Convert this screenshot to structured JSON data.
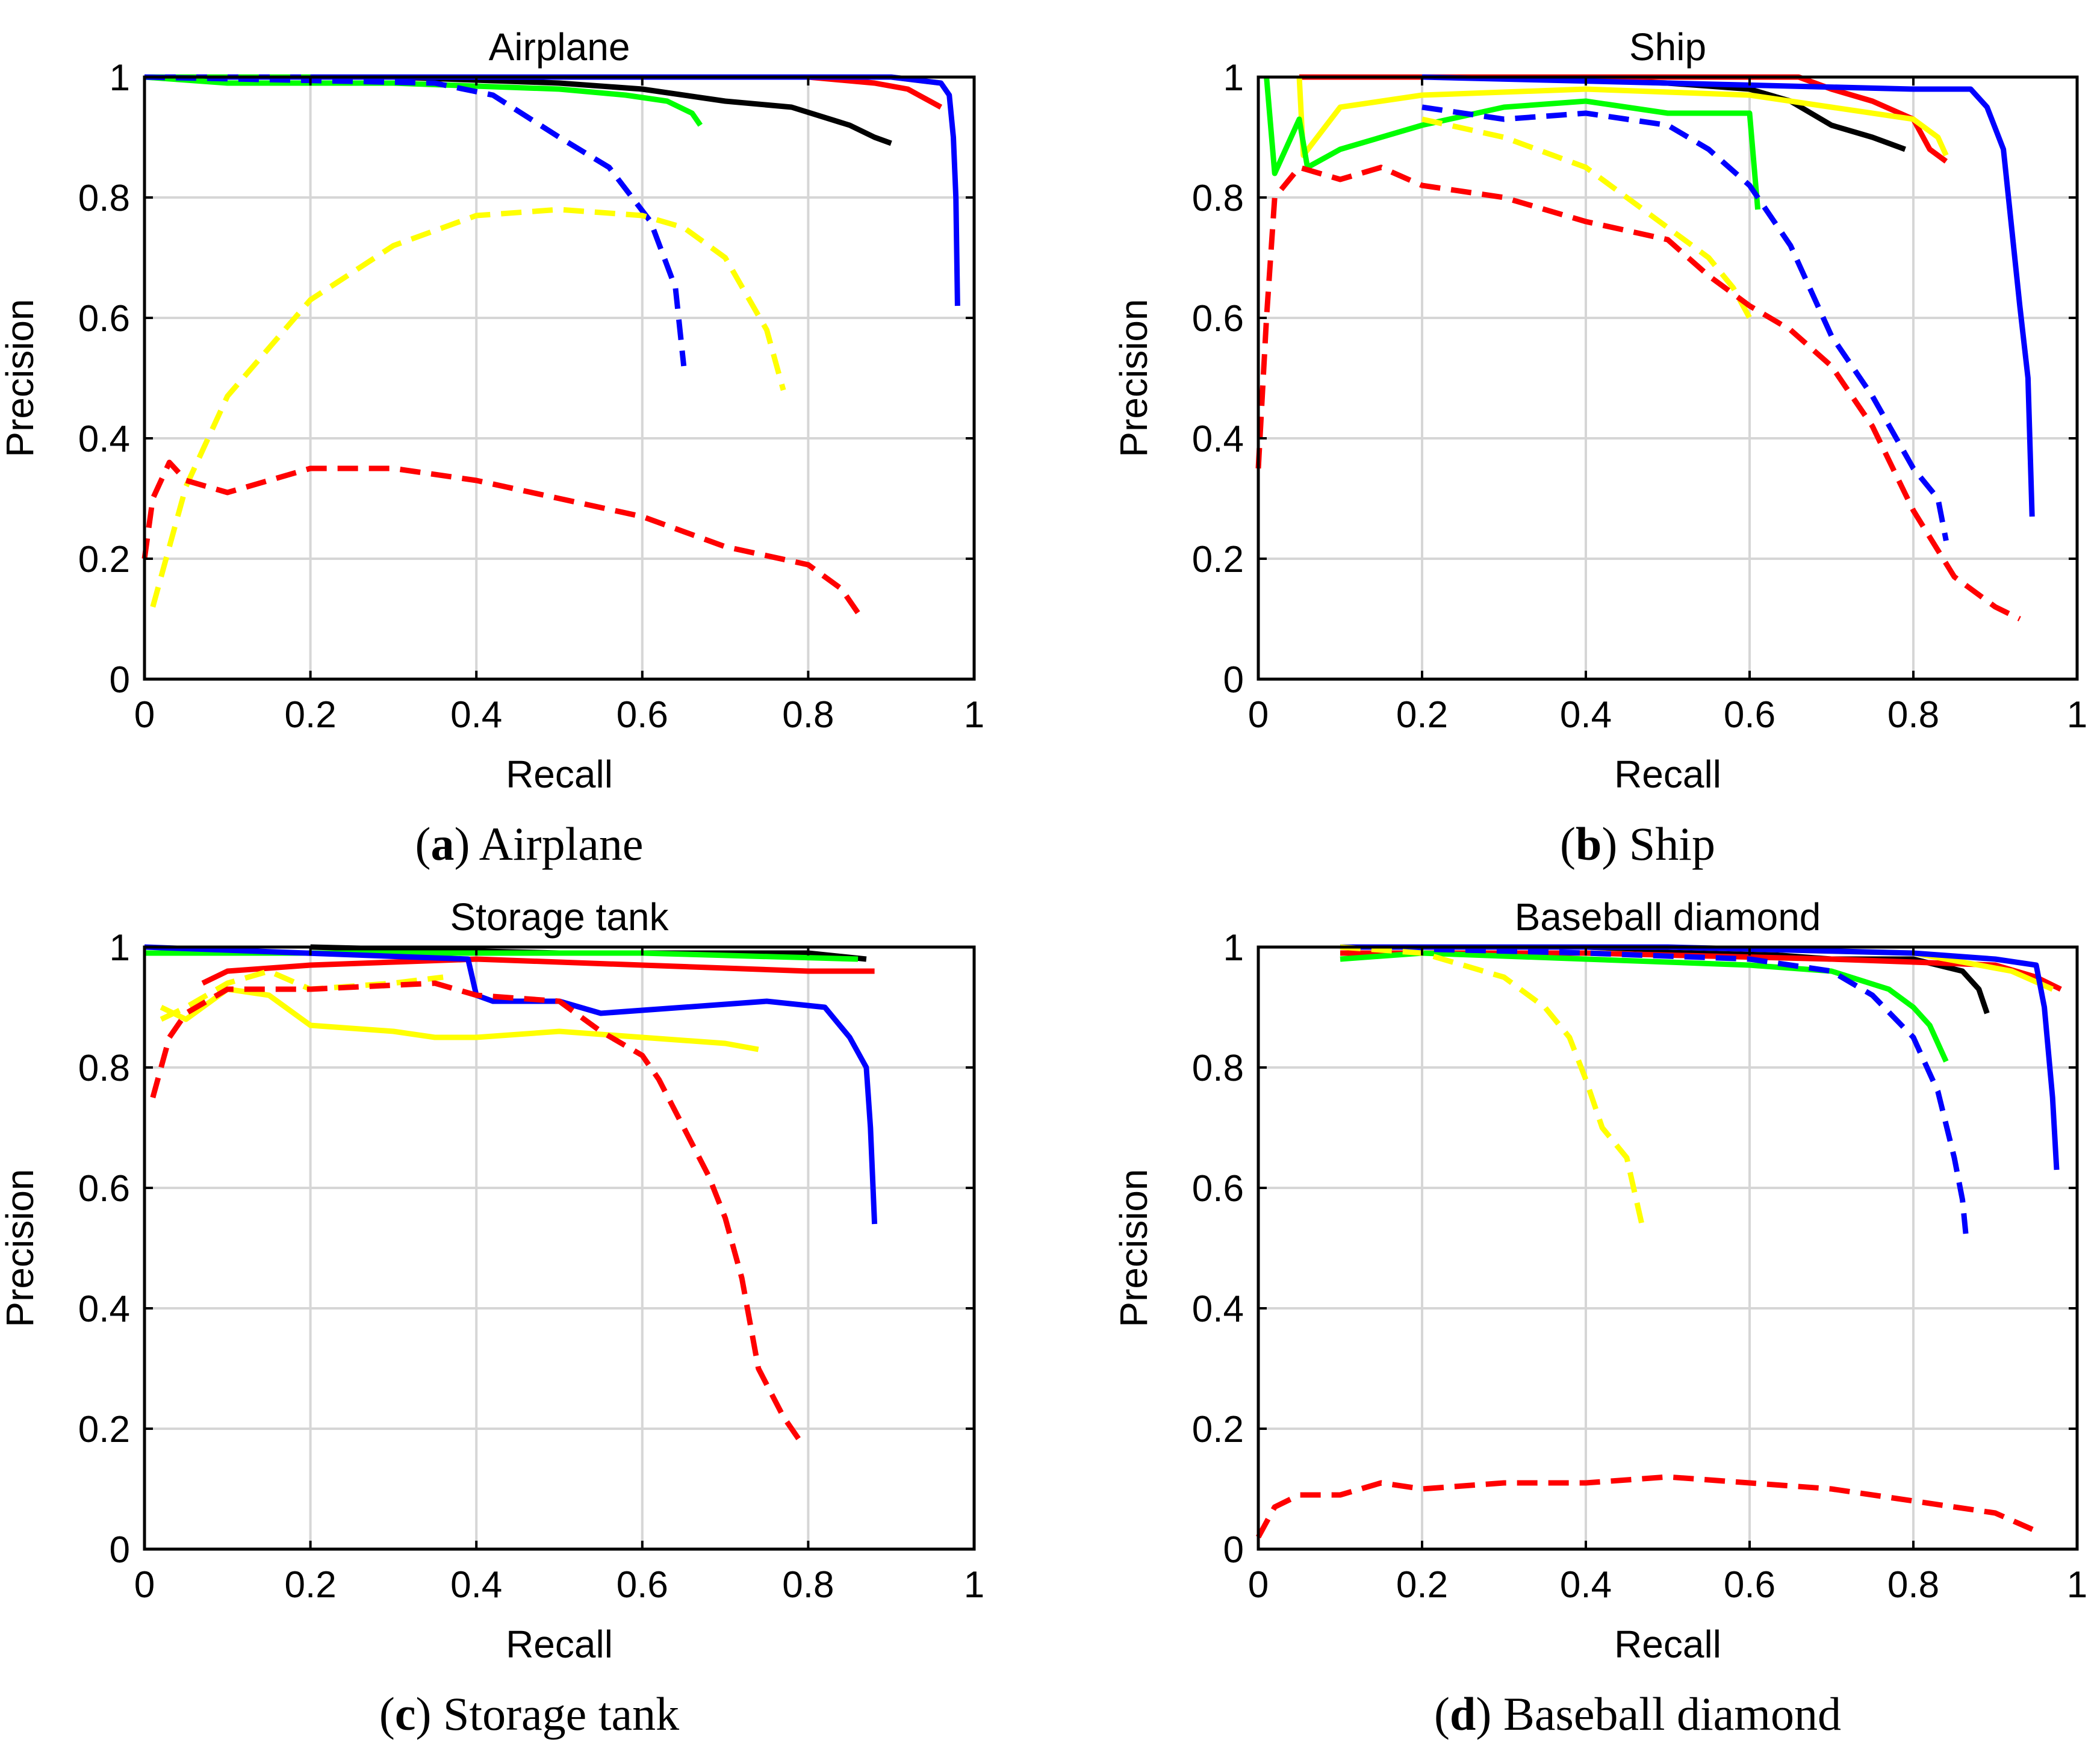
{
  "chart_data": [
    {
      "panel_letter": "a",
      "caption": "Airplane",
      "type": "line",
      "title": "Airplane",
      "xlabel": "Recall",
      "ylabel": "Precision",
      "xlim": [
        0,
        1
      ],
      "ylim": [
        0,
        1
      ],
      "xticks": [
        "0",
        "0.2",
        "0.4",
        "0.6",
        "0.8",
        "1"
      ],
      "yticks": [
        "0",
        "0.2",
        "0.4",
        "0.6",
        "0.8",
        "1"
      ],
      "grid": true,
      "series": [
        {
          "color": "#000000",
          "style": "solid",
          "x": [
            0,
            0.3,
            0.5,
            0.6,
            0.7,
            0.78,
            0.85,
            0.88,
            0.9
          ],
          "y": [
            1,
            1,
            0.99,
            0.98,
            0.96,
            0.95,
            0.92,
            0.9,
            0.89
          ]
        },
        {
          "color": "#ff0000",
          "style": "solid",
          "x": [
            0,
            0.3,
            0.6,
            0.8,
            0.88,
            0.92,
            0.96
          ],
          "y": [
            1,
            1,
            1,
            1,
            0.99,
            0.98,
            0.95
          ]
        },
        {
          "color": "#ffff00",
          "style": "solid",
          "x": [
            0,
            0.5,
            0.8,
            0.9,
            0.96
          ],
          "y": [
            1,
            1,
            1,
            1,
            0.99
          ]
        },
        {
          "color": "#0000ff",
          "style": "solid",
          "x": [
            0,
            0.5,
            0.9,
            0.96,
            0.97,
            0.975,
            0.978,
            0.98
          ],
          "y": [
            1,
            1,
            1,
            0.99,
            0.97,
            0.9,
            0.8,
            0.62
          ]
        },
        {
          "color": "#00ff00",
          "style": "solid",
          "x": [
            0,
            0.1,
            0.3,
            0.5,
            0.58,
            0.63,
            0.66,
            0.67
          ],
          "y": [
            1,
            0.99,
            0.99,
            0.98,
            0.97,
            0.96,
            0.94,
            0.92
          ]
        },
        {
          "color": "#00ff00",
          "style": "dashed",
          "x": [
            0,
            0.2
          ],
          "y": [
            1,
            1
          ]
        },
        {
          "color": "#0000ff",
          "style": "dashed",
          "x": [
            0,
            0.35,
            0.42,
            0.5,
            0.56,
            0.61,
            0.64,
            0.65
          ],
          "y": [
            1,
            0.99,
            0.97,
            0.9,
            0.85,
            0.76,
            0.65,
            0.52
          ]
        },
        {
          "color": "#ffff00",
          "style": "dashed",
          "x": [
            0.01,
            0.05,
            0.1,
            0.2,
            0.3,
            0.4,
            0.5,
            0.6,
            0.65,
            0.7,
            0.75,
            0.77
          ],
          "y": [
            0.12,
            0.32,
            0.47,
            0.63,
            0.72,
            0.77,
            0.78,
            0.77,
            0.75,
            0.7,
            0.58,
            0.48
          ]
        },
        {
          "color": "#ff0000",
          "style": "dashed",
          "x": [
            0,
            0.01,
            0.03,
            0.05,
            0.1,
            0.2,
            0.3,
            0.4,
            0.5,
            0.6,
            0.7,
            0.8,
            0.84,
            0.86
          ],
          "y": [
            0.2,
            0.3,
            0.36,
            0.33,
            0.31,
            0.35,
            0.35,
            0.33,
            0.3,
            0.27,
            0.22,
            0.19,
            0.15,
            0.11
          ]
        }
      ]
    },
    {
      "panel_letter": "b",
      "caption": "Ship",
      "type": "line",
      "title": "Ship",
      "xlabel": "Recall",
      "ylabel": "Precision",
      "xlim": [
        0,
        1
      ],
      "ylim": [
        0,
        1
      ],
      "xticks": [
        "0",
        "0.2",
        "0.4",
        "0.6",
        "0.8",
        "1"
      ],
      "yticks": [
        "0",
        "0.2",
        "0.4",
        "0.6",
        "0.8",
        "1"
      ],
      "grid": true,
      "series": [
        {
          "color": "#000000",
          "style": "solid",
          "x": [
            0.05,
            0.3,
            0.5,
            0.6,
            0.65,
            0.7,
            0.75,
            0.79
          ],
          "y": [
            1,
            1,
            0.99,
            0.98,
            0.96,
            0.92,
            0.9,
            0.88
          ]
        },
        {
          "color": "#ff0000",
          "style": "solid",
          "x": [
            0.05,
            0.4,
            0.66,
            0.7,
            0.75,
            0.8,
            0.82,
            0.84
          ],
          "y": [
            1,
            1,
            1,
            0.98,
            0.96,
            0.93,
            0.88,
            0.86
          ]
        },
        {
          "color": "#ffff00",
          "style": "solid",
          "x": [
            0.05,
            0.055,
            0.1,
            0.2,
            0.4,
            0.6,
            0.7,
            0.8,
            0.83,
            0.84
          ],
          "y": [
            1,
            0.87,
            0.95,
            0.97,
            0.98,
            0.97,
            0.95,
            0.93,
            0.9,
            0.87
          ]
        },
        {
          "color": "#0000ff",
          "style": "solid",
          "x": [
            0.2,
            0.5,
            0.8,
            0.87,
            0.89,
            0.91,
            0.92,
            0.93,
            0.94,
            0.945
          ],
          "y": [
            1,
            0.99,
            0.98,
            0.98,
            0.95,
            0.88,
            0.75,
            0.62,
            0.5,
            0.27
          ]
        },
        {
          "color": "#00ff00",
          "style": "solid",
          "x": [
            0.01,
            0.02,
            0.04,
            0.05,
            0.06,
            0.1,
            0.2,
            0.3,
            0.4,
            0.5,
            0.6,
            0.61
          ],
          "y": [
            1,
            0.84,
            0.9,
            0.93,
            0.85,
            0.88,
            0.92,
            0.95,
            0.96,
            0.94,
            0.94,
            0.78
          ]
        },
        {
          "color": "#0000ff",
          "style": "dashed",
          "x": [
            0.2,
            0.3,
            0.4,
            0.5,
            0.55,
            0.6,
            0.65,
            0.7,
            0.75,
            0.8,
            0.83,
            0.84
          ],
          "y": [
            0.95,
            0.93,
            0.94,
            0.92,
            0.88,
            0.82,
            0.72,
            0.57,
            0.47,
            0.35,
            0.3,
            0.23
          ]
        },
        {
          "color": "#ffff00",
          "style": "dashed",
          "x": [
            0.2,
            0.3,
            0.4,
            0.45,
            0.5,
            0.55,
            0.58,
            0.6
          ],
          "y": [
            0.93,
            0.9,
            0.85,
            0.8,
            0.75,
            0.7,
            0.65,
            0.6
          ]
        },
        {
          "color": "#ff0000",
          "style": "dashed",
          "x": [
            0,
            0.01,
            0.02,
            0.05,
            0.1,
            0.15,
            0.2,
            0.3,
            0.4,
            0.5,
            0.55,
            0.6,
            0.65,
            0.7,
            0.75,
            0.8,
            0.85,
            0.9,
            0.93
          ],
          "y": [
            0.35,
            0.6,
            0.8,
            0.85,
            0.83,
            0.85,
            0.82,
            0.8,
            0.76,
            0.73,
            0.67,
            0.62,
            0.58,
            0.52,
            0.42,
            0.28,
            0.17,
            0.12,
            0.1
          ]
        }
      ]
    },
    {
      "panel_letter": "c",
      "caption": "Storage tank",
      "type": "line",
      "title": "Storage tank",
      "xlabel": "Recall",
      "ylabel": "Precision",
      "xlim": [
        0,
        1
      ],
      "ylim": [
        0,
        1
      ],
      "xticks": [
        "0",
        "0.2",
        "0.4",
        "0.6",
        "0.8",
        "1"
      ],
      "yticks": [
        "0",
        "0.2",
        "0.4",
        "0.6",
        "0.8",
        "1"
      ],
      "grid": true,
      "series": [
        {
          "color": "#000000",
          "style": "solid",
          "x": [
            0.2,
            0.5,
            0.8,
            0.87
          ],
          "y": [
            1,
            0.99,
            0.99,
            0.98
          ]
        },
        {
          "color": "#00ff00",
          "style": "solid",
          "x": [
            0,
            0.3,
            0.6,
            0.86
          ],
          "y": [
            0.99,
            0.99,
            0.99,
            0.98
          ]
        },
        {
          "color": "#ff0000",
          "style": "solid",
          "x": [
            0.07,
            0.1,
            0.2,
            0.4,
            0.6,
            0.8,
            0.88
          ],
          "y": [
            0.94,
            0.96,
            0.97,
            0.98,
            0.97,
            0.96,
            0.96
          ]
        },
        {
          "color": "#0000ff",
          "style": "solid",
          "x": [
            0,
            0.39,
            0.4,
            0.42,
            0.5,
            0.55,
            0.65,
            0.75,
            0.82,
            0.85,
            0.87,
            0.875,
            0.88
          ],
          "y": [
            1,
            0.98,
            0.92,
            0.91,
            0.91,
            0.89,
            0.9,
            0.91,
            0.9,
            0.85,
            0.8,
            0.7,
            0.54
          ]
        },
        {
          "color": "#ffff00",
          "style": "solid",
          "x": [
            0.02,
            0.05,
            0.1,
            0.15,
            0.2,
            0.3,
            0.35,
            0.4,
            0.5,
            0.6,
            0.7,
            0.74
          ],
          "y": [
            0.9,
            0.88,
            0.93,
            0.92,
            0.87,
            0.86,
            0.85,
            0.85,
            0.86,
            0.85,
            0.84,
            0.83
          ]
        },
        {
          "color": "#ffff00",
          "style": "dashed",
          "x": [
            0.02,
            0.05,
            0.1,
            0.15,
            0.2,
            0.3,
            0.36
          ],
          "y": [
            0.88,
            0.9,
            0.94,
            0.96,
            0.93,
            0.94,
            0.95
          ]
        },
        {
          "color": "#ff0000",
          "style": "dashed",
          "x": [
            0.01,
            0.03,
            0.05,
            0.1,
            0.2,
            0.35,
            0.4,
            0.5,
            0.55,
            0.6,
            0.62,
            0.65,
            0.68,
            0.7,
            0.72,
            0.74,
            0.77,
            0.79
          ],
          "y": [
            0.75,
            0.85,
            0.89,
            0.93,
            0.93,
            0.94,
            0.92,
            0.91,
            0.86,
            0.82,
            0.78,
            0.7,
            0.62,
            0.55,
            0.45,
            0.3,
            0.22,
            0.18
          ]
        }
      ]
    },
    {
      "panel_letter": "d",
      "caption": "Baseball diamond",
      "type": "line",
      "title": "Baseball diamond",
      "xlabel": "Recall",
      "ylabel": "Precision",
      "xlim": [
        0,
        1
      ],
      "ylim": [
        0,
        1
      ],
      "xticks": [
        "0",
        "0.2",
        "0.4",
        "0.6",
        "0.8",
        "1"
      ],
      "yticks": [
        "0",
        "0.2",
        "0.4",
        "0.6",
        "0.8",
        "1"
      ],
      "grid": true,
      "series": [
        {
          "color": "#000000",
          "style": "solid",
          "x": [
            0.1,
            0.4,
            0.6,
            0.7,
            0.8,
            0.86,
            0.88,
            0.89
          ],
          "y": [
            1,
            1,
            0.99,
            0.98,
            0.98,
            0.96,
            0.93,
            0.89
          ]
        },
        {
          "color": "#ff0000",
          "style": "solid",
          "x": [
            0.1,
            0.4,
            0.7,
            0.9,
            0.95,
            0.98
          ],
          "y": [
            0.99,
            0.99,
            0.98,
            0.97,
            0.95,
            0.93
          ]
        },
        {
          "color": "#ffff00",
          "style": "solid",
          "x": [
            0.1,
            0.5,
            0.8,
            0.92,
            0.97
          ],
          "y": [
            1,
            1,
            0.99,
            0.96,
            0.93
          ]
        },
        {
          "color": "#0000ff",
          "style": "solid",
          "x": [
            0.1,
            0.5,
            0.8,
            0.9,
            0.95,
            0.96,
            0.97,
            0.975
          ],
          "y": [
            1,
            1,
            0.99,
            0.98,
            0.97,
            0.9,
            0.75,
            0.63
          ]
        },
        {
          "color": "#00ff00",
          "style": "solid",
          "x": [
            0.1,
            0.2,
            0.4,
            0.6,
            0.7,
            0.77,
            0.8,
            0.82,
            0.84
          ],
          "y": [
            0.98,
            0.99,
            0.98,
            0.97,
            0.96,
            0.93,
            0.9,
            0.87,
            0.81
          ]
        },
        {
          "color": "#0000ff",
          "style": "dashed",
          "x": [
            0.1,
            0.4,
            0.6,
            0.7,
            0.75,
            0.8,
            0.83,
            0.85,
            0.86,
            0.865
          ],
          "y": [
            1,
            0.99,
            0.98,
            0.96,
            0.92,
            0.85,
            0.76,
            0.65,
            0.58,
            0.51
          ]
        },
        {
          "color": "#ffff00",
          "style": "dashed",
          "x": [
            0.1,
            0.2,
            0.25,
            0.3,
            0.35,
            0.38,
            0.4,
            0.42,
            0.45,
            0.47
          ],
          "y": [
            1,
            0.99,
            0.97,
            0.95,
            0.9,
            0.85,
            0.78,
            0.7,
            0.65,
            0.53
          ]
        },
        {
          "color": "#ff0000",
          "style": "dashed",
          "x": [
            0,
            0.02,
            0.05,
            0.1,
            0.15,
            0.2,
            0.3,
            0.4,
            0.5,
            0.6,
            0.7,
            0.8,
            0.9,
            0.95
          ],
          "y": [
            0.02,
            0.07,
            0.09,
            0.09,
            0.11,
            0.1,
            0.11,
            0.11,
            0.12,
            0.11,
            0.1,
            0.08,
            0.06,
            0.03
          ]
        }
      ]
    }
  ]
}
